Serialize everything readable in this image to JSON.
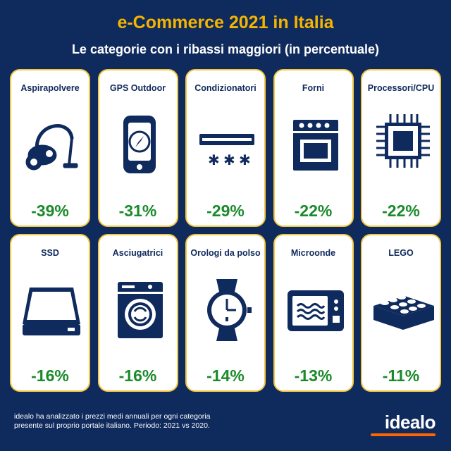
{
  "header": {
    "title": "e-Commerce 2021 in Italia",
    "subtitle": "Le categorie con i ribassi maggiori (in percentuale)"
  },
  "chart_data": {
    "type": "table",
    "title": "e-Commerce 2021 in Italia",
    "subtitle": "Le categorie con i ribassi maggiori (in percentuale)",
    "categories": [
      "Aspirapolvere",
      "GPS Outdoor",
      "Condizionatori",
      "Forni",
      "Processori/CPU",
      "SSD",
      "Asciugatrici",
      "Orologi da polso",
      "Microonde",
      "LEGO"
    ],
    "values": [
      -39,
      -31,
      -29,
      -22,
      -22,
      -16,
      -16,
      -14,
      -13,
      -11
    ],
    "value_labels": [
      "-39%",
      "-31%",
      "-29%",
      "-22%",
      "-22%",
      "-16%",
      "-16%",
      "-14%",
      "-13%",
      "-11%"
    ],
    "icons": [
      "vacuum-cleaner-icon",
      "gps-device-icon",
      "air-conditioner-icon",
      "oven-icon",
      "cpu-chip-icon",
      "ssd-drive-icon",
      "washing-machine-icon",
      "wristwatch-icon",
      "microwave-icon",
      "lego-brick-icon"
    ]
  },
  "footer": {
    "note_line1": "idealo ha analizzato i prezzi medi annuali per ogni categoria",
    "note_line2": "presente sul proprio portale italiano. Periodo: 2021 vs 2020.",
    "brand": "idealo"
  },
  "colors": {
    "background": "#0f2a5c",
    "title": "#f5b400",
    "card_border": "#f5c842",
    "value": "#1a8a2a",
    "icon": "#0f2a5c",
    "brand_accent": "#ff6600"
  }
}
